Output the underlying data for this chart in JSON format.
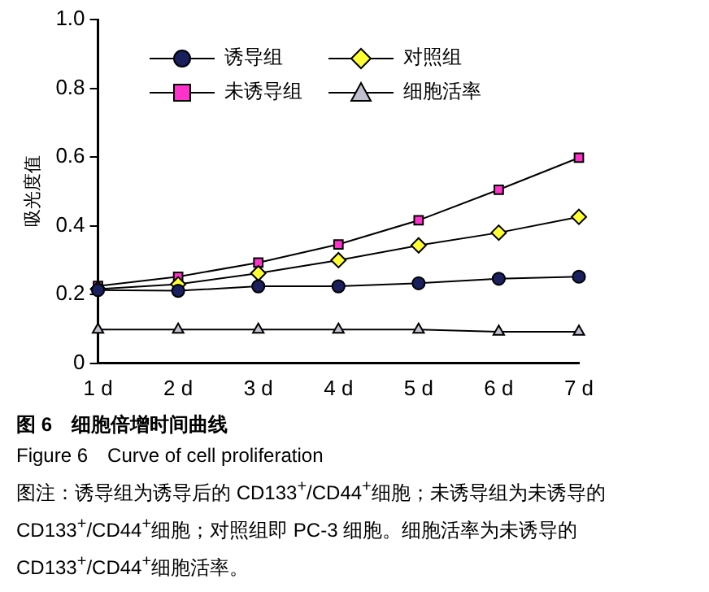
{
  "chart_data": {
    "type": "line",
    "title": "图 6　细胞倍增时间曲线",
    "subtitle": "Figure 6　Curve of cell proliferation",
    "ylabel": "吸光度值",
    "annotations": [
      "图注：诱导组为诱导后的 CD133$^{+}$/CD44$^{+}$细胞；未诱导组为未诱导的 CD133$^{+}$/CD44$^{+}$细胞；对照组即 PC-3 细胞。细胞活率为未诱导的 CD133$^{+}$/CD44$^{+}$细胞活率。"
    ],
    "categories": [
      "1 d",
      "2 d",
      "3 d",
      "4 d",
      "5 d",
      "6 d",
      "7 d"
    ],
    "ylim": [
      0,
      1.0
    ],
    "yticks": [
      0,
      0.2,
      0.4,
      0.6,
      0.8,
      {
        "value": 1.0,
        "label": "1.0"
      }
    ],
    "grid": false,
    "legend": "top",
    "line_style": "solid",
    "series": [
      {
        "name": "诱导组",
        "color": "#1a1f5e",
        "marker": "circle",
        "values": [
          0.213,
          0.211,
          0.224,
          0.224,
          0.233,
          0.246,
          0.252
        ]
      },
      {
        "name": "对照组",
        "color": "#ffff33",
        "marker": "diamond",
        "values": [
          0.216,
          0.23,
          0.262,
          0.3,
          0.343,
          0.38,
          0.426
        ]
      },
      {
        "name": "未诱导组",
        "color": "#ff33cc",
        "marker": "square",
        "values": [
          0.225,
          0.252,
          0.293,
          0.346,
          0.416,
          0.505,
          0.598
        ]
      },
      {
        "name": "细胞活率",
        "color": "#c0c0d0",
        "marker": "triangle",
        "values": [
          0.098,
          0.098,
          0.098,
          0.098,
          0.098,
          0.092,
          0.092
        ]
      }
    ]
  }
}
